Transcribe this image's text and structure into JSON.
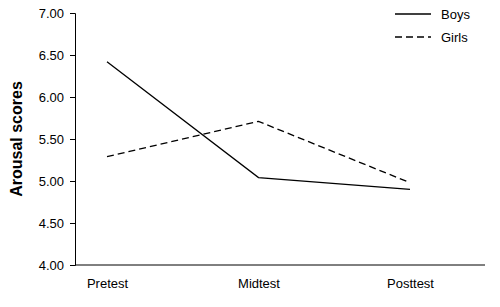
{
  "chart_data": {
    "type": "line",
    "ylabel": "Arousal scores",
    "categories": [
      "Pretest",
      "Midtest",
      "Posttest"
    ],
    "series": [
      {
        "name": "Boys",
        "color": "#000000",
        "line_style": "solid",
        "values": [
          6.42,
          5.04,
          4.9
        ]
      },
      {
        "name": "Girls",
        "color": "#000000",
        "line_style": "dashed",
        "values": [
          5.29,
          5.71,
          4.98
        ]
      }
    ],
    "ylim": [
      4,
      7
    ],
    "yticks": [
      {
        "value": 4,
        "label": "4.00"
      },
      {
        "value": 4.5,
        "label": "4.50"
      },
      {
        "value": 5,
        "label": "5.00"
      },
      {
        "value": 5.5,
        "label": "5.50"
      },
      {
        "value": 6,
        "label": "6.00"
      },
      {
        "value": 6.5,
        "label": "6.50"
      },
      {
        "value": 7,
        "label": "7.00"
      }
    ],
    "legend": "upper right",
    "grid": false
  }
}
